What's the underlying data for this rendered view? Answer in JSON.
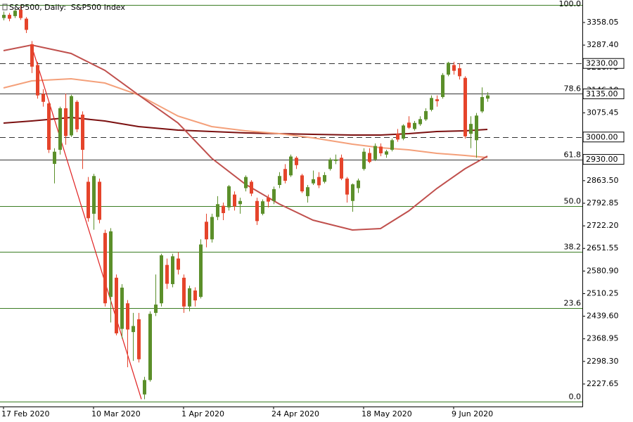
{
  "chart_data": {
    "type": "candlestick",
    "title": "S&P500, Daily:  S&P500 Index",
    "categories": [
      "17 Feb 2020",
      null,
      null,
      null,
      null,
      null,
      null,
      null,
      null,
      null,
      null,
      null,
      null,
      null,
      null,
      null,
      "10 Mar 2020",
      null,
      null,
      null,
      null,
      null,
      null,
      null,
      null,
      null,
      null,
      null,
      null,
      null,
      null,
      null,
      "1 Apr 2020",
      null,
      null,
      null,
      null,
      null,
      null,
      null,
      null,
      null,
      null,
      null,
      null,
      null,
      null,
      null,
      "24 Apr 2020",
      null,
      null,
      null,
      null,
      null,
      null,
      null,
      null,
      null,
      null,
      null,
      null,
      null,
      null,
      null,
      "18 May 2020",
      null,
      null,
      null,
      null,
      null,
      null,
      null,
      null,
      null,
      null,
      null,
      null,
      null,
      null,
      null,
      "9 Jun 2020",
      null,
      null,
      null,
      null,
      null,
      null
    ],
    "open": [
      3372,
      3382,
      3378,
      3398,
      3370,
      3290,
      3225,
      3135,
      3105,
      2916,
      2960,
      3090,
      3005,
      3110,
      3070,
      2860,
      2760,
      2860,
      2700,
      2500,
      2560,
      2400,
      2480,
      2390,
      2430,
      2195,
      2240,
      2450,
      2480,
      2600,
      2540,
      2620,
      2560,
      2470,
      2520,
      2500,
      2735,
      2680,
      2750,
      2785,
      2780,
      2820,
      2790,
      2840,
      2860,
      2800,
      2760,
      2810,
      2800,
      2850,
      2900,
      2880,
      2935,
      2880,
      2815,
      2855,
      2875,
      2860,
      2900,
      2925,
      2935,
      2870,
      2800,
      2840,
      2900,
      2950,
      2930,
      2970,
      2945,
      2960,
      3010,
      2995,
      3045,
      3025,
      3040,
      3055,
      3085,
      3118,
      3125,
      3195,
      3225,
      3215,
      3185,
      3010,
      2990,
      3080,
      3120
    ],
    "high": [
      3392,
      3388,
      3400,
      3410,
      3375,
      3300,
      3235,
      3150,
      3110,
      2965,
      3095,
      3136,
      3132,
      3115,
      3080,
      2875,
      2885,
      2870,
      2710,
      2715,
      2570,
      2540,
      2490,
      2450,
      2450,
      2250,
      2455,
      2570,
      2635,
      2620,
      2635,
      2640,
      2570,
      2535,
      2530,
      2680,
      2760,
      2760,
      2815,
      2795,
      2850,
      2830,
      2810,
      2880,
      2865,
      2810,
      2805,
      2820,
      2845,
      2890,
      2915,
      2945,
      2940,
      2885,
      2850,
      2895,
      2890,
      2890,
      2935,
      2945,
      2945,
      2875,
      2855,
      2870,
      2965,
      2965,
      2980,
      2980,
      2960,
      2995,
      3025,
      3040,
      3065,
      3050,
      3065,
      3090,
      3130,
      3130,
      3200,
      3235,
      3235,
      3230,
      3190,
      3065,
      3075,
      3155,
      3140
    ],
    "low": [
      3365,
      3362,
      3372,
      3366,
      3325,
      3200,
      3120,
      3095,
      2950,
      2855,
      2945,
      2976,
      3000,
      3015,
      2900,
      2735,
      2710,
      2730,
      2470,
      2420,
      2380,
      2370,
      2280,
      2300,
      2295,
      2180,
      2235,
      2440,
      2470,
      2525,
      2530,
      2570,
      2450,
      2455,
      2470,
      2495,
      2655,
      2670,
      2740,
      2740,
      2770,
      2770,
      2760,
      2830,
      2815,
      2725,
      2755,
      2780,
      2790,
      2840,
      2855,
      2875,
      2900,
      2825,
      2795,
      2850,
      2840,
      2855,
      2895,
      2915,
      2865,
      2795,
      2766,
      2825,
      2895,
      2918,
      2925,
      2940,
      2935,
      2955,
      2985,
      2990,
      3025,
      3020,
      3035,
      3050,
      3080,
      3095,
      3120,
      3190,
      3195,
      3180,
      2995,
      2965,
      2935,
      3075,
      3110
    ],
    "close": [
      3382,
      3370,
      3395,
      3372,
      3335,
      3220,
      3130,
      3110,
      2960,
      2954,
      3090,
      3003,
      3128,
      3024,
      2960,
      2746,
      2878,
      2741,
      2480,
      2705,
      2386,
      2529,
      2398,
      2409,
      2305,
      2240,
      2447,
      2476,
      2630,
      2541,
      2627,
      2585,
      2470,
      2527,
      2489,
      2664,
      2680,
      2750,
      2790,
      2762,
      2846,
      2783,
      2800,
      2875,
      2823,
      2737,
      2799,
      2798,
      2837,
      2878,
      2863,
      2939,
      2912,
      2830,
      2843,
      2868,
      2849,
      2881,
      2930,
      2930,
      2870,
      2820,
      2852,
      2864,
      2954,
      2922,
      2972,
      2949,
      2955,
      2990,
      2992,
      3036,
      3029,
      3044,
      3056,
      3081,
      3122,
      3112,
      3194,
      3232,
      3207,
      3190,
      3002,
      3041,
      3067,
      3125,
      3130
    ],
    "up_color": "#5b8f2a",
    "down_color": "#e5442b",
    "ylim": [
      2157.2,
      3428.4
    ],
    "yticks": [
      3358.05,
      {
        "value": 3287.4,
        "label": "3287.40"
      },
      3216.75,
      {
        "value": 3146.1,
        "label": "3146.10"
      },
      3075.45,
      {
        "value": 2863.5,
        "label": "2863.50"
      },
      2792.85,
      {
        "value": 2722.2,
        "label": "2722.20"
      },
      2651.55,
      {
        "value": 2580.9,
        "label": "2580.90"
      },
      2510.25,
      {
        "value": 2439.6,
        "label": "2439.60"
      },
      2368.95,
      {
        "value": 2298.3,
        "label": "2298.30"
      },
      2227.65
    ],
    "indicators": [
      {
        "color": "#7b1010",
        "x": [
          0,
          5,
          12,
          18,
          24,
          31,
          37,
          43,
          49,
          55,
          62,
          67,
          72,
          77,
          82,
          86
        ],
        "values": [
          3043.5,
          3050.1,
          3061.2,
          3050.1,
          3032.5,
          3021.5,
          3017.1,
          3012.8,
          3010.6,
          3008.4,
          3006.2,
          3006.2,
          3010.6,
          3017.1,
          3019.3,
          3023.7
        ]
      },
      {
        "color": "#f4a07a",
        "x": [
          0,
          5,
          12,
          18,
          24,
          31,
          37,
          43,
          49,
          55,
          62,
          67,
          72,
          77,
          82,
          86
        ],
        "values": [
          3153.5,
          3175.5,
          3182.1,
          3168.9,
          3131.5,
          3065.5,
          3032.5,
          3019.3,
          3010.6,
          2997.3,
          2977.5,
          2966.5,
          2960.0,
          2949.0,
          2942.4,
          2935.7
        ]
      },
      {
        "color": "#c0504d",
        "x": [
          0,
          5,
          12,
          18,
          24,
          31,
          37,
          43,
          49,
          55,
          62,
          67,
          72,
          77,
          82,
          86
        ],
        "values": [
          3270.1,
          3287.7,
          3261.3,
          3208.5,
          3131.5,
          3044.0,
          2933.6,
          2852.2,
          2790.7,
          2740.1,
          2709.3,
          2713.6,
          2768.6,
          2839.0,
          2900.6,
          2940.2
        ]
      }
    ],
    "trendline": {
      "color": "#e02020",
      "x": [
        4.9,
        24.5
      ],
      "values": [
        3290,
        2180
      ]
    },
    "levels": [
      {
        "value": 3230,
        "label": "3230.00",
        "style": "dashed"
      },
      {
        "value": 3135,
        "label": "3135.00",
        "style": "solid"
      },
      {
        "value": 3000,
        "label": "3000.00",
        "style": "dashed"
      },
      {
        "value": 2930,
        "label": "2930.00",
        "style": "solid"
      }
    ],
    "fibonacci": {
      "color": "#3b7d23",
      "levels": [
        {
          "label": "100.0",
          "value": 3413
        },
        {
          "label": "78.6",
          "value": 3135
        },
        {
          "label": "61.8",
          "value": 2930
        },
        {
          "label": "50.0",
          "value": 2784
        },
        {
          "label": "38.2",
          "value": 2641
        },
        {
          "label": "23.6",
          "value": 2465
        },
        {
          "label": "0.0",
          "value": 2172.7
        }
      ]
    }
  }
}
